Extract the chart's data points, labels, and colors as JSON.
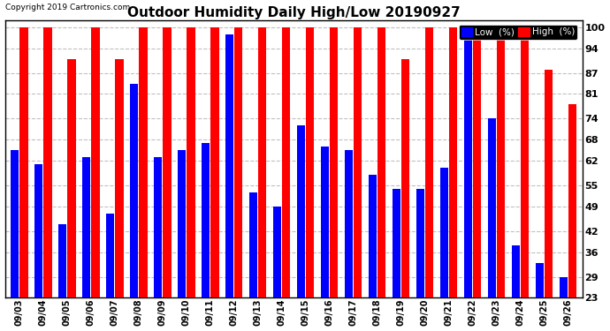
{
  "title": "Outdoor Humidity Daily High/Low 20190927",
  "copyright": "Copyright 2019 Cartronics.com",
  "dates": [
    "09/03",
    "09/04",
    "09/05",
    "09/06",
    "09/07",
    "09/08",
    "09/09",
    "09/10",
    "09/11",
    "09/12",
    "09/13",
    "09/14",
    "09/15",
    "09/16",
    "09/17",
    "09/18",
    "09/19",
    "09/20",
    "09/21",
    "09/22",
    "09/23",
    "09/24",
    "09/25",
    "09/26"
  ],
  "high": [
    100,
    100,
    91,
    100,
    91,
    100,
    100,
    100,
    100,
    100,
    100,
    100,
    100,
    100,
    100,
    100,
    91,
    100,
    100,
    100,
    100,
    97,
    88,
    78
  ],
  "low": [
    65,
    61,
    44,
    63,
    47,
    84,
    63,
    65,
    67,
    98,
    53,
    49,
    72,
    66,
    65,
    58,
    54,
    54,
    60,
    97,
    74,
    38,
    33,
    29
  ],
  "high_color": "#FF0000",
  "low_color": "#0000FF",
  "bg_color": "#FFFFFF",
  "yticks": [
    23,
    29,
    36,
    42,
    49,
    55,
    62,
    68,
    74,
    81,
    87,
    94,
    100
  ],
  "ymin": 23,
  "ymax": 102,
  "grid_color": "#C0C0C0",
  "title_fontsize": 11,
  "legend_low_label": "Low  (%)",
  "legend_high_label": "High  (%)"
}
